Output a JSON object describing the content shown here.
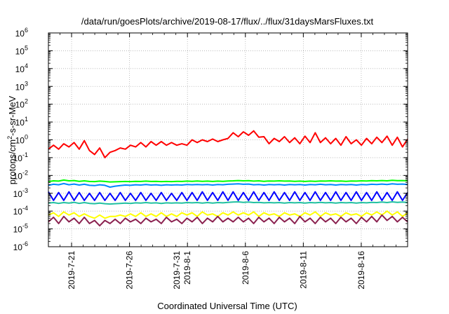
{
  "chart_data": {
    "type": "line",
    "title": "/data/run/goesPlots/archive/2019-08-17/flux/../flux/31daysMarsFluxes.txt",
    "xlabel": "Coordinated Universal Time (UTC)",
    "ylabel_parts": [
      "protons/cm",
      "2",
      "-s-sr-MeV"
    ],
    "y_scale": "log",
    "ylim_exponents": [
      -6,
      6
    ],
    "ytick_exponents": [
      -6,
      -5,
      -4,
      -3,
      -2,
      -1,
      0,
      1,
      2,
      3,
      4,
      5,
      6
    ],
    "ytick_base": "10",
    "xlim_days": [
      0,
      31
    ],
    "xticks": [
      {
        "day": 2,
        "lines": [
          "2019-7-21"
        ]
      },
      {
        "day": 7,
        "lines": [
          "2019-7-26"
        ]
      },
      {
        "day": 12,
        "lines": [
          "2019-7-31",
          "2019-8-1"
        ]
      },
      {
        "day": 17,
        "lines": [
          "2019-8-6"
        ]
      },
      {
        "day": 22,
        "lines": [
          "2019-8-11"
        ]
      },
      {
        "day": 27,
        "lines": [
          "2019-8-16"
        ]
      }
    ],
    "grid": true,
    "legend": "none",
    "series": [
      {
        "color": "#ff0000",
        "values": [
          0.3,
          0.5,
          0.3,
          0.6,
          0.4,
          0.7,
          0.3,
          0.9,
          0.25,
          0.15,
          0.35,
          0.1,
          0.2,
          0.25,
          0.35,
          0.3,
          0.5,
          0.4,
          0.7,
          0.4,
          0.8,
          0.5,
          0.8,
          0.5,
          0.7,
          0.5,
          0.6,
          0.5,
          1.0,
          0.7,
          1.0,
          0.8,
          1.1,
          0.8,
          1.0,
          1.2,
          2.5,
          1.5,
          2.8,
          1.8,
          3.2,
          1.4,
          1.5,
          0.6,
          1.2,
          0.8,
          1.5,
          0.7,
          1.3,
          0.6,
          1.6,
          0.7,
          2.5,
          0.7,
          1.3,
          0.6,
          1.2,
          0.5,
          1.5,
          0.6,
          1.0,
          0.5,
          1.2,
          0.6,
          1.4,
          0.7,
          1.6,
          0.5,
          1.4,
          0.4,
          1.1
        ]
      },
      {
        "color": "#00ff00",
        "values": [
          0.0045,
          0.005,
          0.0048,
          0.0055,
          0.005,
          0.0052,
          0.0047,
          0.005,
          0.0046,
          0.0045,
          0.0048,
          0.0046,
          0.0043,
          0.0044,
          0.0045,
          0.0046,
          0.0045,
          0.0047,
          0.0046,
          0.0048,
          0.0046,
          0.0047,
          0.0045,
          0.0046,
          0.0045,
          0.0047,
          0.0046,
          0.0048,
          0.0047,
          0.0049,
          0.0047,
          0.0048,
          0.0046,
          0.0048,
          0.0047,
          0.0049,
          0.005,
          0.0052,
          0.005,
          0.0051,
          0.0048,
          0.005,
          0.0047,
          0.0049,
          0.0048,
          0.005,
          0.0048,
          0.0049,
          0.0047,
          0.0048,
          0.0046,
          0.0048,
          0.0047,
          0.0049,
          0.0048,
          0.005,
          0.0048,
          0.0049,
          0.0047,
          0.0049,
          0.0048,
          0.005,
          0.0049,
          0.0051,
          0.005,
          0.0052,
          0.005,
          0.0053,
          0.0051,
          0.0052,
          0.005
        ]
      },
      {
        "color": "#0088ff",
        "values": [
          0.0028,
          0.0032,
          0.003,
          0.0035,
          0.003,
          0.0033,
          0.0029,
          0.0032,
          0.0028,
          0.0027,
          0.003,
          0.0028,
          0.0022,
          0.0025,
          0.0027,
          0.0029,
          0.0028,
          0.003,
          0.0029,
          0.0031,
          0.0029,
          0.003,
          0.0028,
          0.003,
          0.0029,
          0.003,
          0.0029,
          0.0031,
          0.003,
          0.0031,
          0.003,
          0.0031,
          0.0029,
          0.0031,
          0.003,
          0.0032,
          0.0033,
          0.0034,
          0.0032,
          0.0033,
          0.003,
          0.0031,
          0.0029,
          0.0031,
          0.003,
          0.0031,
          0.0029,
          0.0031,
          0.003,
          0.0031,
          0.0029,
          0.0031,
          0.003,
          0.0032,
          0.003,
          0.0031,
          0.0029,
          0.0031,
          0.003,
          0.0031,
          0.0029,
          0.0031,
          0.003,
          0.0032,
          0.0031,
          0.0033,
          0.0031,
          0.0034,
          0.0032,
          0.0033,
          0.0031
        ]
      },
      {
        "color": "#0000ff",
        "values": [
          0.0012,
          0.0004,
          0.0011,
          0.0004,
          0.0012,
          0.0004,
          0.0011,
          0.0004,
          0.001,
          0.0004,
          0.0011,
          0.0004,
          0.001,
          0.0004,
          0.0011,
          0.0004,
          0.001,
          0.0004,
          0.0011,
          0.0004,
          0.001,
          0.0004,
          0.0011,
          0.0004,
          0.001,
          0.0004,
          0.0011,
          0.0004,
          0.0011,
          0.0004,
          0.0012,
          0.0004,
          0.0011,
          0.0004,
          0.0012,
          0.0004,
          0.0012,
          0.0004,
          0.0011,
          0.0004,
          0.0012,
          0.0004,
          0.0011,
          0.0004,
          0.0012,
          0.0004,
          0.0011,
          0.0004,
          0.0012,
          0.0004,
          0.0011,
          0.0004,
          0.0012,
          0.0004,
          0.0011,
          0.0004,
          0.0012,
          0.0004,
          0.0011,
          0.0004,
          0.0012,
          0.0004,
          0.0011,
          0.0004,
          0.0012,
          0.0004,
          0.0011,
          0.0004,
          0.0012,
          0.0004,
          0.0011
        ]
      },
      {
        "color": "#20c0a0",
        "values": [
          0.00028,
          0.0003,
          0.00027,
          0.0003,
          0.00028,
          0.00031,
          0.00027,
          0.0003,
          0.00027,
          0.00026,
          0.00028,
          0.00026,
          0.00025,
          0.00026,
          0.00027,
          0.00028,
          0.00027,
          0.00029,
          0.00028,
          0.0003,
          0.00028,
          0.00029,
          0.00027,
          0.00029,
          0.00028,
          0.00029,
          0.00028,
          0.0003,
          0.00029,
          0.0003,
          0.00028,
          0.0003,
          0.00028,
          0.0003,
          0.00029,
          0.00031,
          0.00032,
          0.00033,
          0.00031,
          0.00032,
          0.0003,
          0.00031,
          0.00029,
          0.0003,
          0.00029,
          0.0003,
          0.00028,
          0.0003,
          0.00029,
          0.0003,
          0.00028,
          0.0003,
          0.00029,
          0.00031,
          0.00029,
          0.0003,
          0.00028,
          0.0003,
          0.00029,
          0.0003,
          0.00028,
          0.0003,
          0.00029,
          0.00031,
          0.0003,
          0.00032,
          0.0003,
          0.00033,
          0.00031,
          0.00032,
          0.0003
        ]
      },
      {
        "color": "#ffff00",
        "values": [
          6e-05,
          8e-05,
          5e-05,
          9e-05,
          6e-05,
          8e-05,
          5e-05,
          7e-05,
          5e-05,
          4e-05,
          6e-05,
          4e-05,
          5e-05,
          5e-05,
          6e-05,
          5e-05,
          7e-05,
          5e-05,
          8e-05,
          5e-05,
          7e-05,
          5e-05,
          8e-05,
          5e-05,
          7e-05,
          5e-05,
          8e-05,
          6e-05,
          8e-05,
          5e-05,
          9e-05,
          6e-05,
          7e-05,
          5e-05,
          8e-05,
          6e-05,
          9e-05,
          6e-05,
          8e-05,
          6e-05,
          9e-05,
          5e-05,
          8e-05,
          6e-05,
          7e-05,
          5e-05,
          8e-05,
          6e-05,
          7e-05,
          5e-05,
          8e-05,
          6e-05,
          9e-05,
          5e-05,
          8e-05,
          6e-05,
          7e-05,
          5e-05,
          8e-05,
          6e-05,
          7e-05,
          5e-05,
          8e-05,
          6e-05,
          9e-05,
          6e-05,
          0.0001,
          6e-05,
          9e-05,
          5e-05,
          8e-05
        ]
      },
      {
        "color": "#8b2250",
        "values": [
          2.5e-05,
          4.5e-05,
          2e-05,
          5e-05,
          2.5e-05,
          4e-05,
          2e-05,
          4.5e-05,
          2e-05,
          3e-05,
          1.5e-05,
          3e-05,
          2e-05,
          3.5e-05,
          2e-05,
          4e-05,
          2.5e-05,
          3.5e-05,
          2e-05,
          4e-05,
          2.5e-05,
          3.5e-05,
          2e-05,
          4.5e-05,
          2.5e-05,
          3.5e-05,
          2e-05,
          4e-05,
          2.5e-05,
          4.5e-05,
          2e-05,
          4e-05,
          2.5e-05,
          5e-05,
          2.5e-05,
          4e-05,
          2.5e-05,
          4.5e-05,
          2.5e-05,
          4e-05,
          2e-05,
          4.5e-05,
          2.5e-05,
          4e-05,
          2e-05,
          4.5e-05,
          2.5e-05,
          4e-05,
          2e-05,
          5e-05,
          2.5e-05,
          4e-05,
          2e-05,
          4.5e-05,
          2.5e-05,
          4e-05,
          2e-05,
          4.5e-05,
          2.5e-05,
          4e-05,
          2e-05,
          4.5e-05,
          2.5e-05,
          5e-05,
          2.5e-05,
          6e-05,
          3e-05,
          5e-05,
          2.5e-05,
          4.5e-05,
          2.5e-05
        ]
      }
    ]
  }
}
